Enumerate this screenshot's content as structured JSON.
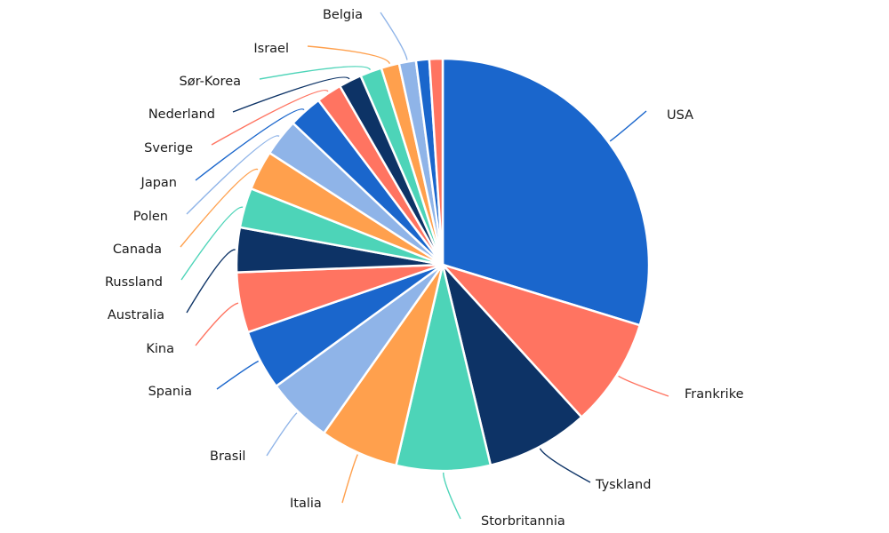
{
  "chart_data": {
    "type": "pie",
    "title": "",
    "slices": [
      {
        "label": "USA",
        "value": 31.5,
        "color": "#1a66cc"
      },
      {
        "label": "Frankrike",
        "value": 9.0,
        "color": "#ff7461"
      },
      {
        "label": "Tyskland",
        "value": 8.5,
        "color": "#0d3366"
      },
      {
        "label": "Storbritannia",
        "value": 7.8,
        "color": "#4dd4b8"
      },
      {
        "label": "Italia",
        "value": 6.5,
        "color": "#ffa04d"
      },
      {
        "label": "Brasil",
        "value": 5.5,
        "color": "#8fb4e8"
      },
      {
        "label": "Spania",
        "value": 5.0,
        "color": "#1a66cc"
      },
      {
        "label": "Kina",
        "value": 5.0,
        "color": "#ff7461"
      },
      {
        "label": "Australia",
        "value": 3.7,
        "color": "#0d3366"
      },
      {
        "label": "Russland",
        "value": 3.3,
        "color": "#4dd4b8"
      },
      {
        "label": "Canada",
        "value": 3.3,
        "color": "#ffa04d"
      },
      {
        "label": "Polen",
        "value": 3.1,
        "color": "#8fb4e8"
      },
      {
        "label": "Japan",
        "value": 2.8,
        "color": "#1a66cc"
      },
      {
        "label": "Sverige",
        "value": 2.1,
        "color": "#ff7461"
      },
      {
        "label": "Nederland",
        "value": 1.9,
        "color": "#0d3366"
      },
      {
        "label": "Sør-Korea",
        "value": 1.8,
        "color": "#4dd4b8"
      },
      {
        "label": "Israel",
        "value": 1.5,
        "color": "#ffa04d"
      },
      {
        "label": "Belgia",
        "value": 1.4,
        "color": "#8fb4e8"
      },
      {
        "label": "",
        "value": 1.1,
        "color": "#1a66cc"
      },
      {
        "label": "",
        "value": 1.1,
        "color": "#ff7461"
      }
    ]
  }
}
